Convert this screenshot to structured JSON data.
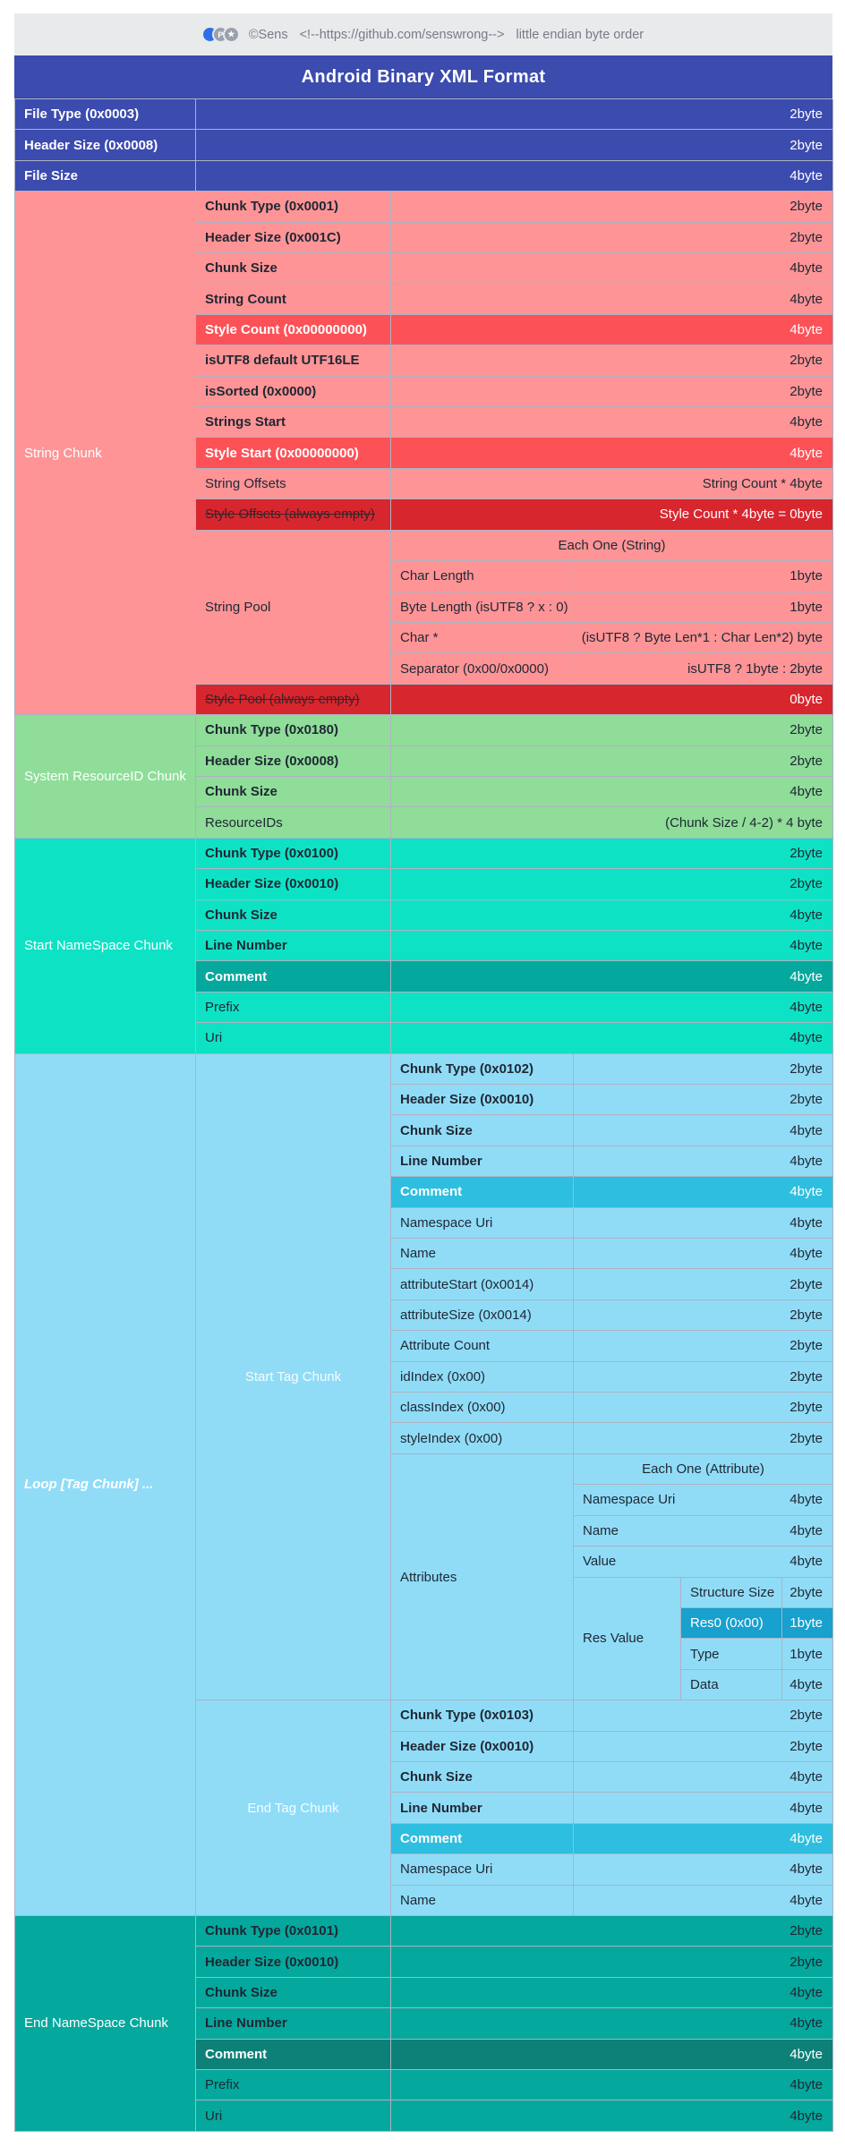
{
  "meta_bar": {
    "icons": [
      {
        "name": "blue-circle-icon",
        "glyph": ""
      },
      {
        "name": "p-badge-icon",
        "glyph": "P"
      },
      {
        "name": "star-badge-icon",
        "glyph": "★"
      }
    ],
    "copyright": "©Sens",
    "comment": "<!--https://github.com/senswrong-->",
    "note": "little endian byte order"
  },
  "title": "Android Binary XML Format",
  "colors": {
    "header_blue": "#3b4bae",
    "meta_gray": "#e9eaec",
    "pink": "#fe9496",
    "red_highlight": "#fc5257",
    "red_dark": "#d8262e",
    "green": "#8fdd99",
    "turquoise": "#0ee2c5",
    "teal_highlight": "#04a89d",
    "teal_dark": "#0d8077",
    "light_blue": "#90dcf7",
    "cyan_highlight": "#2ebedf",
    "blue_highlight": "#18a0ce",
    "border": "#acb2c2",
    "ink": "#1f2733"
  },
  "file_header_rows": [
    {
      "label": "File Type (0x0003)",
      "size": "2byte",
      "bold": true
    },
    {
      "label": "Header Size (0x0008)",
      "size": "2byte",
      "bold": true
    },
    {
      "label": "File Size",
      "size": "4byte",
      "bold": true
    }
  ],
  "sections": [
    {
      "name": "string-chunk",
      "label": "String Chunk",
      "bg": "pink",
      "rows": [
        {
          "label": "Chunk Type (0x0001)",
          "size": "2byte",
          "bold": true
        },
        {
          "label": "Header Size (0x001C)",
          "size": "2byte",
          "bold": true
        },
        {
          "label": "Chunk Size",
          "size": "4byte",
          "bold": true
        },
        {
          "label": "String Count",
          "size": "4byte",
          "bold": true
        },
        {
          "label": "Style Count (0x00000000)",
          "size": "4byte",
          "bold": true,
          "highlight": "red_highlight",
          "white": true
        },
        {
          "label": "isUTF8 default UTF16LE",
          "size": "2byte",
          "bold": true
        },
        {
          "label": "isSorted (0x0000)",
          "size": "2byte",
          "bold": true
        },
        {
          "label": "Strings Start",
          "size": "4byte",
          "bold": true
        },
        {
          "label": "Style Start (0x00000000)",
          "size": "4byte",
          "bold": true,
          "highlight": "red_highlight",
          "white": true
        },
        {
          "label": "String Offsets",
          "size": "String Count * 4byte"
        },
        {
          "label": "Style Offsets (always empty)",
          "size": "Style Count * 4byte = 0byte",
          "highlight": "red_dark",
          "strike": true
        },
        {
          "group": "String Pool",
          "header": "Each One (String)",
          "subrows": [
            {
              "label": "Char Length",
              "size": "1byte"
            },
            {
              "label": "Byte Length (isUTF8 ? x : 0)",
              "size": "1byte"
            },
            {
              "label": "Char *",
              "size": "(isUTF8 ? Byte Len*1 : Char Len*2) byte"
            },
            {
              "label": "Separator (0x00/0x0000)",
              "size": "isUTF8 ? 1byte : 2byte"
            }
          ]
        },
        {
          "label": "Style Pool (always empty)",
          "size": "0byte",
          "highlight": "red_dark",
          "strike": true
        }
      ]
    },
    {
      "name": "system-resource-id-chunk",
      "label": "System ResourceID Chunk",
      "bg": "green",
      "rows": [
        {
          "label": "Chunk Type (0x0180)",
          "size": "2byte",
          "bold": true
        },
        {
          "label": "Header Size (0x0008)",
          "size": "2byte",
          "bold": true
        },
        {
          "label": "Chunk Size",
          "size": "4byte",
          "bold": true
        },
        {
          "label": "ResourceIDs",
          "size": "(Chunk Size / 4-2) * 4 byte"
        }
      ]
    },
    {
      "name": "start-namespace-chunk",
      "label": "Start NameSpace Chunk",
      "bg": "turquoise",
      "rows": [
        {
          "label": "Chunk Type (0x0100)",
          "size": "2byte",
          "bold": true
        },
        {
          "label": "Header Size (0x0010)",
          "size": "2byte",
          "bold": true
        },
        {
          "label": "Chunk Size",
          "size": "4byte",
          "bold": true
        },
        {
          "label": "Line Number",
          "size": "4byte",
          "bold": true
        },
        {
          "label": "Comment",
          "size": "4byte",
          "bold": true,
          "highlight": "teal_highlight",
          "white": true
        },
        {
          "label": "Prefix",
          "size": "4byte"
        },
        {
          "label": "Uri",
          "size": "4byte"
        }
      ]
    },
    {
      "name": "loop-tag-chunk",
      "label": "Loop [Tag Chunk] ...",
      "bg": "light_blue",
      "italic": true,
      "subchunks": [
        {
          "label": "Start Tag Chunk",
          "rows": [
            {
              "label": "Chunk Type (0x0102)",
              "size": "2byte",
              "bold": true
            },
            {
              "label": "Header Size (0x0010)",
              "size": "2byte",
              "bold": true
            },
            {
              "label": "Chunk Size",
              "size": "4byte",
              "bold": true
            },
            {
              "label": "Line Number",
              "size": "4byte",
              "bold": true
            },
            {
              "label": "Comment",
              "size": "4byte",
              "bold": true,
              "highlight": "cyan_highlight",
              "white": true
            },
            {
              "label": "Namespace Uri",
              "size": "4byte"
            },
            {
              "label": "Name",
              "size": "4byte"
            },
            {
              "label": "attributeStart (0x0014)",
              "size": "2byte"
            },
            {
              "label": "attributeSize (0x0014)",
              "size": "2byte"
            },
            {
              "label": "Attribute Count",
              "size": "2byte"
            },
            {
              "label": "idIndex (0x00)",
              "size": "2byte"
            },
            {
              "label": "classIndex (0x00)",
              "size": "2byte"
            },
            {
              "label": "styleIndex (0x00)",
              "size": "2byte"
            },
            {
              "group": "Attributes",
              "header": "Each One (Attribute)",
              "pairs": [
                {
                  "label": "Namespace Uri",
                  "size": "4byte"
                },
                {
                  "label": "Name",
                  "size": "4byte"
                },
                {
                  "label": "Value",
                  "size": "4byte"
                }
              ],
              "res_value": {
                "label": "Res Value",
                "rows": [
                  {
                    "label": "Structure Size",
                    "size": "2byte"
                  },
                  {
                    "label": "Res0 (0x00)",
                    "size": "1byte",
                    "highlight": "blue_highlight",
                    "white": true
                  },
                  {
                    "label": "Type",
                    "size": "1byte"
                  },
                  {
                    "label": "Data",
                    "size": "4byte"
                  }
                ]
              }
            }
          ]
        },
        {
          "label": "End Tag Chunk",
          "rows": [
            {
              "label": "Chunk Type (0x0103)",
              "size": "2byte",
              "bold": true
            },
            {
              "label": "Header Size (0x0010)",
              "size": "2byte",
              "bold": true
            },
            {
              "label": "Chunk Size",
              "size": "4byte",
              "bold": true
            },
            {
              "label": "Line Number",
              "size": "4byte",
              "bold": true
            },
            {
              "label": "Comment",
              "size": "4byte",
              "bold": true,
              "highlight": "cyan_highlight",
              "white": true
            },
            {
              "label": "Namespace Uri",
              "size": "4byte"
            },
            {
              "label": "Name",
              "size": "4byte"
            }
          ]
        }
      ]
    },
    {
      "name": "end-namespace-chunk",
      "label": "End NameSpace Chunk",
      "bg": "teal_highlight",
      "rows": [
        {
          "label": "Chunk Type (0x0101)",
          "size": "2byte",
          "bold": true
        },
        {
          "label": "Header Size (0x0010)",
          "size": "2byte",
          "bold": true
        },
        {
          "label": "Chunk Size",
          "size": "4byte",
          "bold": true
        },
        {
          "label": "Line Number",
          "size": "4byte",
          "bold": true
        },
        {
          "label": "Comment",
          "size": "4byte",
          "bold": true,
          "highlight": "teal_dark",
          "white": true
        },
        {
          "label": "Prefix",
          "size": "4byte"
        },
        {
          "label": "Uri",
          "size": "4byte"
        }
      ]
    }
  ]
}
